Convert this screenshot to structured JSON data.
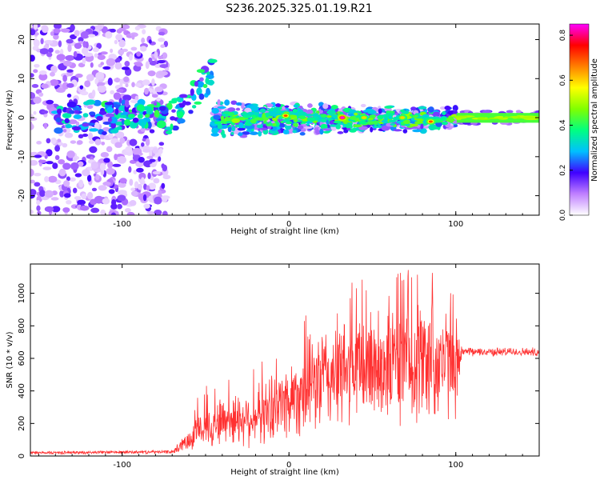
{
  "title": "S236.2025.325.01.19.R21",
  "chart_data": [
    {
      "type": "heatmap",
      "xlabel": "Height of straight line (km)",
      "ylabel": "Frequency (Hz)",
      "xlim": [
        -155,
        150
      ],
      "ylim": [
        -25,
        24
      ],
      "xticks": [
        -100,
        0,
        100
      ],
      "yticks": [
        -20,
        -10,
        0,
        10,
        20
      ],
      "colorbar": {
        "label": "Normalized spectral amplitude",
        "range": [
          0,
          0.85
        ],
        "ticks": [
          0,
          0.2,
          0.4,
          0.6,
          0.8
        ],
        "colors": [
          "#ffffff",
          "#c080ff",
          "#4000ff",
          "#00c0ff",
          "#00ff80",
          "#80ff00",
          "#ffff00",
          "#ff8000",
          "#ff0000",
          "#ff00ff"
        ]
      },
      "features": [
        {
          "region": "scattered noise",
          "x_range": [
            -155,
            -75
          ],
          "freq_range": [
            -25,
            24
          ],
          "amplitude": 0.1
        },
        {
          "region": "rising arc",
          "x_range": [
            -75,
            -45
          ],
          "freq_range": [
            -5,
            10
          ],
          "amplitude": 0.3
        },
        {
          "region": "main band",
          "x_range": [
            -45,
            100
          ],
          "freq_range": [
            -5,
            4
          ],
          "amplitude": 0.35
        },
        {
          "region": "steady band",
          "x_range": [
            100,
            150
          ],
          "freq_range": [
            -1,
            1
          ],
          "amplitude": 0.45
        }
      ],
      "peaks": [
        {
          "x": -2,
          "freq": 0.5,
          "amplitude": 0.7
        },
        {
          "x": 32,
          "freq": 0,
          "amplitude": 0.85
        },
        {
          "x": 45,
          "freq": 0,
          "amplitude": 0.6
        },
        {
          "x": 68,
          "freq": 0,
          "amplitude": 0.6
        },
        {
          "x": 85,
          "freq": -1,
          "amplitude": 0.7
        }
      ]
    },
    {
      "type": "line",
      "xlabel": "Height of straight line (km)",
      "ylabel": "SNR (10 * v/v)",
      "xlim": [
        -155,
        150
      ],
      "ylim": [
        0,
        1180
      ],
      "xticks": [
        -100,
        0,
        100
      ],
      "yticks": [
        0,
        200,
        400,
        600,
        800,
        1000
      ],
      "color": "#ff3030",
      "envelope": [
        {
          "x": -155,
          "mean": 20,
          "spread": 10
        },
        {
          "x": -70,
          "mean": 25,
          "spread": 12
        },
        {
          "x": -65,
          "mean": 60,
          "spread": 40
        },
        {
          "x": -55,
          "mean": 150,
          "spread": 120
        },
        {
          "x": -40,
          "mean": 220,
          "spread": 180
        },
        {
          "x": -20,
          "mean": 240,
          "spread": 200
        },
        {
          "x": 0,
          "mean": 350,
          "spread": 280
        },
        {
          "x": 20,
          "mean": 480,
          "spread": 380
        },
        {
          "x": 50,
          "mean": 560,
          "spread": 420
        },
        {
          "x": 85,
          "mean": 600,
          "spread": 460
        },
        {
          "x": 100,
          "mean": 560,
          "spread": 350
        },
        {
          "x": 104,
          "mean": 640,
          "spread": 30
        },
        {
          "x": 150,
          "mean": 640,
          "spread": 30
        }
      ]
    }
  ]
}
